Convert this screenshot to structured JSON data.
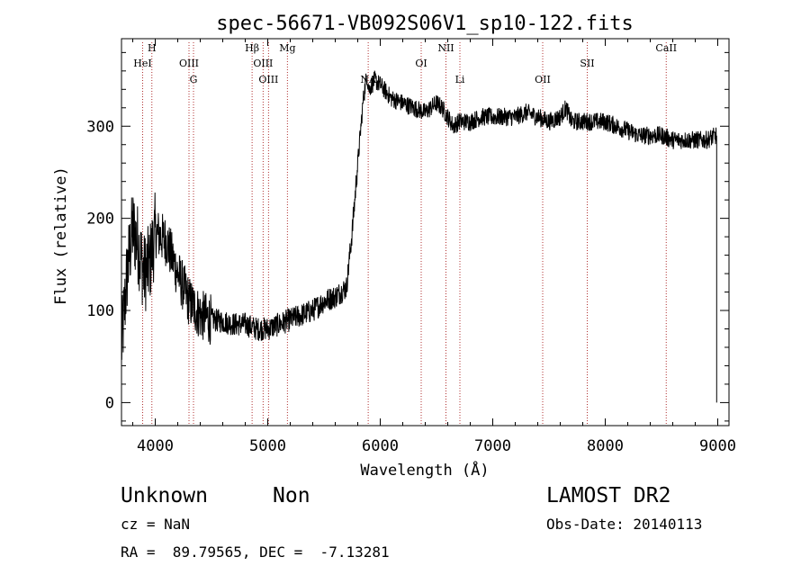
{
  "chart_data": {
    "type": "line",
    "title": "spec-56671-VB092S06V1_sp10-122.fits",
    "xlabel": "Wavelength (Å)",
    "ylabel": "Flux (relative)",
    "xlim": [
      3700,
      9100
    ],
    "ylim": [
      -25,
      395
    ],
    "xticks": [
      4000,
      5000,
      6000,
      7000,
      8000,
      9000
    ],
    "yticks": [
      0,
      100,
      200,
      300
    ],
    "grid": false,
    "line_color": "#000000",
    "marker_color": "#b03030",
    "spectrum_anchor_points": {
      "x": [
        3700,
        3750,
        3800,
        3850,
        3900,
        3950,
        4000,
        4100,
        4200,
        4300,
        4400,
        4500,
        4600,
        4700,
        4800,
        4900,
        5000,
        5100,
        5200,
        5300,
        5400,
        5500,
        5600,
        5650,
        5700,
        5750,
        5800,
        5850,
        5880,
        5900,
        5950,
        6000,
        6100,
        6200,
        6300,
        6400,
        6500,
        6550,
        6600,
        6650,
        6700,
        6800,
        6900,
        7000,
        7100,
        7200,
        7300,
        7400,
        7500,
        7600,
        7650,
        7700,
        7800,
        7900,
        8000,
        8100,
        8200,
        8300,
        8400,
        8500,
        8600,
        8700,
        8800,
        8900,
        8990
      ],
      "y": [
        60,
        140,
        190,
        170,
        140,
        150,
        185,
        175,
        140,
        110,
        95,
        90,
        88,
        85,
        85,
        80,
        80,
        85,
        90,
        95,
        100,
        110,
        115,
        120,
        125,
        185,
        260,
        330,
        355,
        340,
        350,
        345,
        330,
        325,
        320,
        315,
        325,
        320,
        310,
        300,
        305,
        305,
        310,
        310,
        310,
        310,
        315,
        310,
        305,
        310,
        320,
        305,
        305,
        305,
        305,
        300,
        295,
        290,
        290,
        290,
        285,
        285,
        285,
        285,
        290
      ]
    },
    "lines": [
      {
        "label": "HeI",
        "x": 3888
      },
      {
        "label": "H",
        "x": 3970
      },
      {
        "label": "OIII",
        "x": 4300
      },
      {
        "label": "G",
        "x": 4340
      },
      {
        "label": "Hβ",
        "x": 4861
      },
      {
        "label": "OIII",
        "x": 4959
      },
      {
        "label": "OIII",
        "x": 5007
      },
      {
        "label": "Mg",
        "x": 5175
      },
      {
        "label": "NA",
        "x": 5893
      },
      {
        "label": "OI",
        "x": 6364
      },
      {
        "label": "NII",
        "x": 6584
      },
      {
        "label": "Li",
        "x": 6708
      },
      {
        "label": "OII",
        "x": 7444
      },
      {
        "label": "SII",
        "x": 7840
      },
      {
        "label": "CaII",
        "x": 8542
      }
    ]
  },
  "info": {
    "obj_class": "Unknown",
    "obj_subclass": "Non",
    "survey": "LAMOST DR2",
    "cz": "cz = NaN",
    "obs_date": "Obs-Date: 20140113",
    "radec": "RA =  89.79565, DEC =  -7.13281"
  }
}
